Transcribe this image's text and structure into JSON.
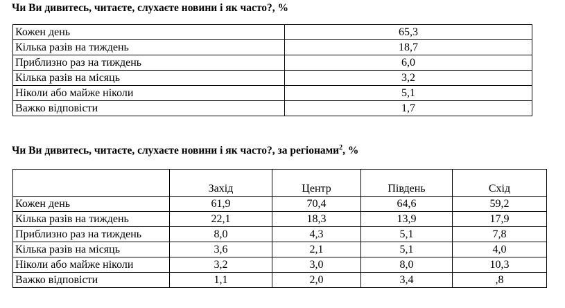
{
  "section1": {
    "title": "Чи Ви дивитесь, читаєте, слухаєте новини і як часто?, %",
    "rows": [
      {
        "label": "Кожен день",
        "value": "65,3"
      },
      {
        "label": "Кілька разів на тиждень",
        "value": "18,7"
      },
      {
        "label": "Приблизно раз на тиждень",
        "value": "6,0"
      },
      {
        "label": "Кілька разів на місяць",
        "value": "3,2"
      },
      {
        "label": "Ніколи або майже ніколи",
        "value": "5,1"
      },
      {
        "label": "Важко відповісти",
        "value": "1,7"
      }
    ]
  },
  "section2": {
    "title": "Чи Ви дивитесь, читаєте, слухаєте новини і як часто?, за регіонами",
    "title_footnote": "2",
    "title_suffix": ", %",
    "columns": [
      "",
      "Захід",
      "Центр",
      "Південь",
      "Схід"
    ],
    "rows": [
      {
        "label": "Кожен день",
        "values": [
          "61,9",
          "70,4",
          "64,6",
          "59,2"
        ]
      },
      {
        "label": "Кілька разів на тиждень",
        "values": [
          "22,1",
          "18,3",
          "13,9",
          "17,9"
        ]
      },
      {
        "label": "Приблизно раз на тиждень",
        "values": [
          "8,0",
          "4,3",
          "5,1",
          "7,8"
        ]
      },
      {
        "label": "Кілька разів на місяць",
        "values": [
          "3,6",
          "2,1",
          "5,1",
          "4,0"
        ]
      },
      {
        "label": "Ніколи або майже ніколи",
        "values": [
          "3,2",
          "3,0",
          "8,0",
          "10,3"
        ]
      },
      {
        "label": "Важко відповісти",
        "values": [
          "1,1",
          "2,0",
          "3,4",
          ",8"
        ]
      }
    ]
  }
}
